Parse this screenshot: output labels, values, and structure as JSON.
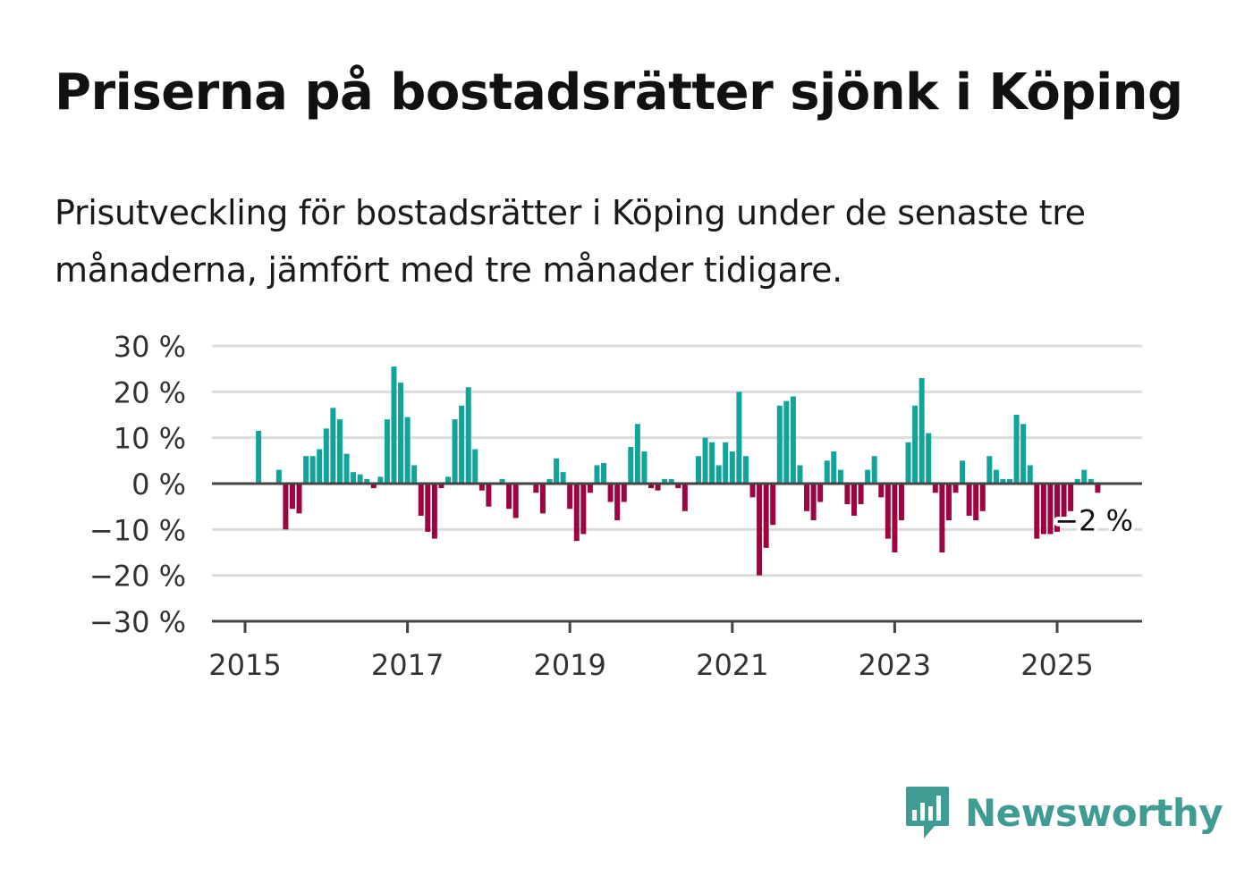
{
  "chart_data": {
    "type": "bar",
    "title": "Priserna på bostadsrätter sjönk i Köping",
    "subtitle": "Prisutveckling för bostadsrätter i Köping under de senaste tre månaderna, jämfört med tre månader tidigare.",
    "xlabel": "",
    "ylabel": "",
    "x_start": "2015-01",
    "x_ticks": [
      "2015",
      "2017",
      "2019",
      "2021",
      "2023",
      "2025"
    ],
    "y_ticks": [
      "30 %",
      "20 %",
      "10 %",
      "0 %",
      "−10 %",
      "−20 %",
      "−30 %"
    ],
    "ylim": [
      -30,
      30
    ],
    "grid": true,
    "colors": {
      "positive": "#12a39a",
      "negative": "#9c0541"
    },
    "values": [
      0,
      0,
      11.5,
      0,
      0,
      3,
      -10,
      -5.5,
      -6.5,
      6,
      6,
      7.5,
      12,
      16.5,
      14,
      6.5,
      2.5,
      2,
      1,
      -1,
      1.5,
      14,
      25.5,
      22,
      14.5,
      4,
      -7,
      -10.5,
      -12,
      -1,
      1.5,
      14,
      17,
      21,
      7.5,
      -1.5,
      -5,
      0,
      1,
      -5.5,
      -7.5,
      0,
      0,
      -2,
      -6.5,
      1,
      5.5,
      2.5,
      -5.5,
      -12.5,
      -11,
      -2,
      4,
      4.5,
      -4,
      -8,
      -4,
      8,
      13,
      7,
      -1,
      -1.5,
      1,
      1,
      -1,
      -6,
      0,
      6,
      10,
      9,
      4,
      9,
      7,
      20,
      6,
      -3,
      -20,
      -14,
      -9,
      17,
      18,
      19,
      4,
      -6,
      -8,
      -4,
      5,
      7,
      3,
      -4.5,
      -7,
      -4.5,
      3,
      6,
      -3,
      -12,
      -15,
      -8,
      9,
      17,
      23,
      11,
      -2,
      -15,
      -8,
      -2,
      5,
      -7,
      -8,
      -6,
      6,
      3,
      1,
      1,
      15,
      13,
      4,
      -12,
      -11,
      -11,
      -10.5,
      -8,
      -6,
      1,
      3,
      1,
      -2
    ],
    "annotation": {
      "label": "−2 %",
      "value": -2
    }
  },
  "brand": {
    "name": "Newsworthy",
    "icon": "bar-chart-speech-icon",
    "color": "#3f9c93"
  }
}
